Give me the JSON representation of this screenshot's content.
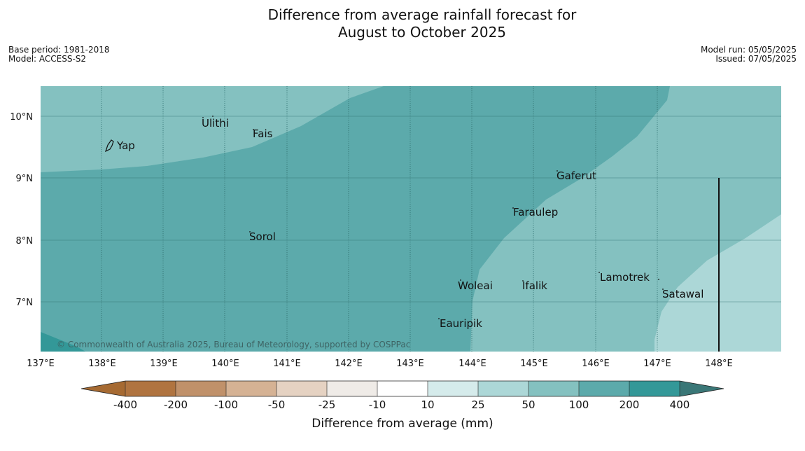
{
  "title_line1": "Difference from average rainfall forecast for",
  "title_line2": "August to October 2025",
  "meta_left": {
    "base_period": "Base period: 1981-2018",
    "model": "Model: ACCESS-S2"
  },
  "meta_right": {
    "model_run": "Model run: 05/05/2025",
    "issued": "Issued: 07/05/2025"
  },
  "copyright": "© Commonwealth of Australia 2025, Bureau of Meteorology, supported by COSPPac",
  "x_ticks": [
    "137°E",
    "138°E",
    "139°E",
    "140°E",
    "141°E",
    "142°E",
    "143°E",
    "144°E",
    "145°E",
    "146°E",
    "147°E",
    "148°E"
  ],
  "y_ticks": [
    "10°N",
    "9°N",
    "8°N",
    "7°N"
  ],
  "places": [
    "Yap",
    "Ulithi",
    "Fais",
    "Gaferut",
    "Faraulep",
    "Sorol",
    "Woleai",
    "Ifalik",
    "Lamotrek",
    "Satawal",
    "Eauripik"
  ],
  "colorbar": {
    "title": "Difference from average (mm)",
    "labels": [
      "-400",
      "-200",
      "-100",
      "-50",
      "-25",
      "-10",
      "10",
      "25",
      "50",
      "100",
      "200",
      "400"
    ],
    "colors": [
      "#a66a32",
      "#b07440",
      "#c0916a",
      "#d5b294",
      "#e5d2c2",
      "#efebe7",
      "#ffffff",
      "#d5ebeb",
      "#acd7d7",
      "#84c1c0",
      "#5caaab",
      "#339898",
      "#3a7777"
    ]
  },
  "map_colors": {
    "band_25_50": "#acd7d7",
    "band_50_100": "#84c1c0",
    "band_100_200": "#5caaab",
    "band_200_400": "#339898"
  }
}
